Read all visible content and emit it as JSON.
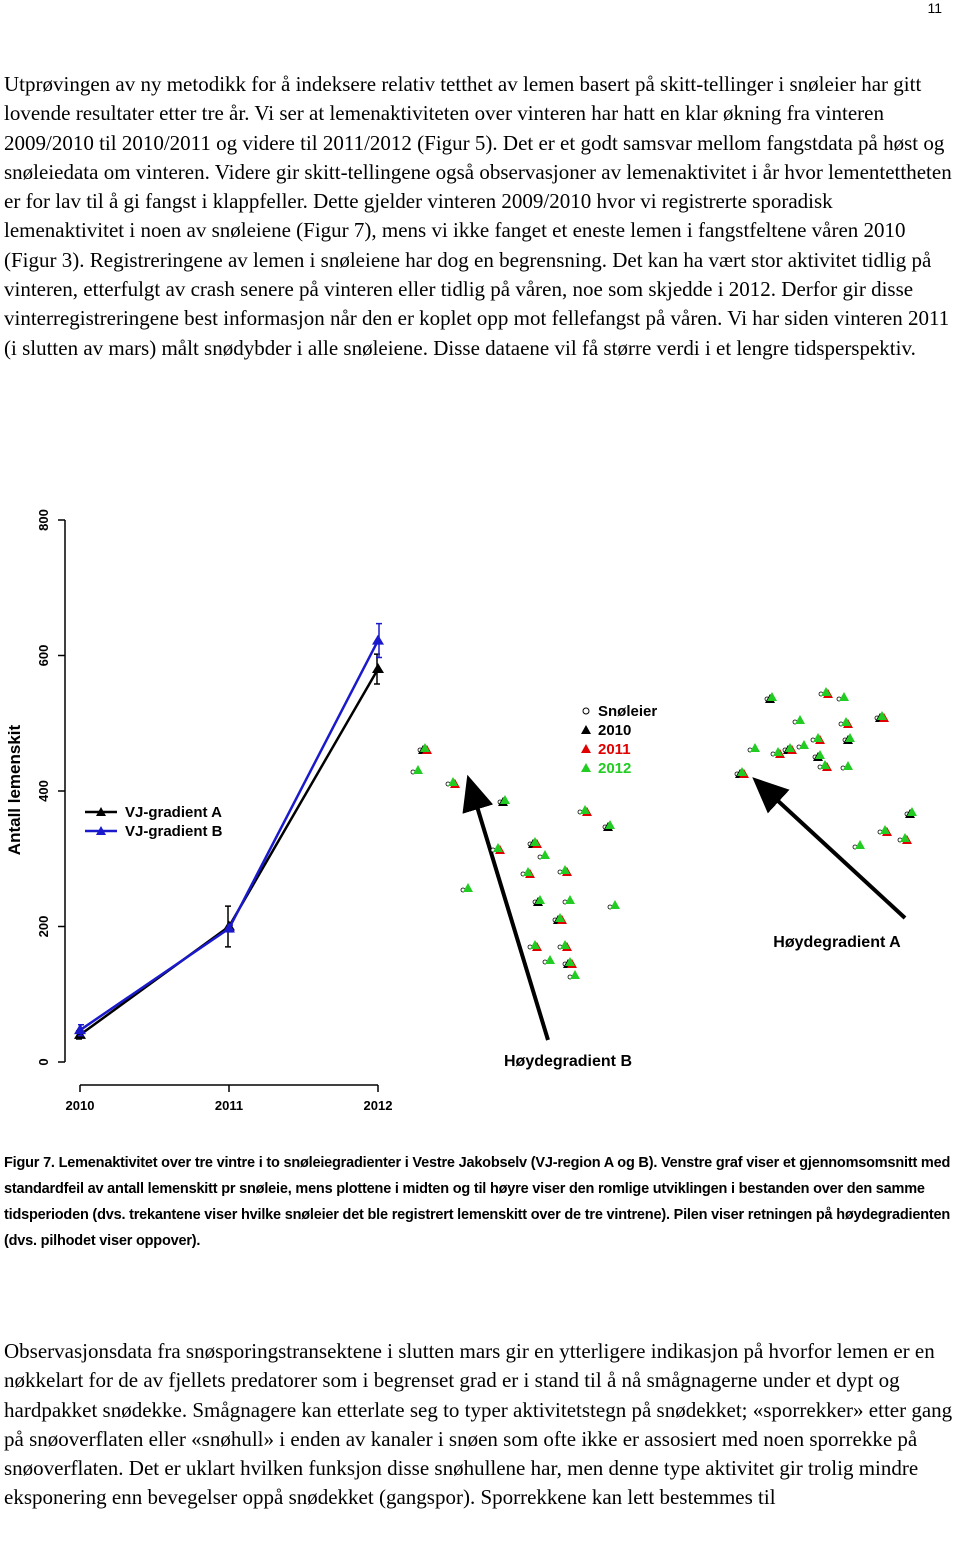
{
  "page_number": "11",
  "paragraphs": [
    "Utprøvingen av ny metodikk for å indeksere relativ tetthet av lemen basert på skitt-tellinger i snøleier har gitt lovende resultater etter tre år. Vi ser at lemenaktiviteten over vinteren har hatt en klar økning fra vinteren 2009/2010 til 2010/2011 og videre til 2011/2012 (Figur 5). Det er et godt samsvar mellom fangstdata på høst og snøleiedata om vinteren. Videre gir skitt-tellingene også observasjoner av lemenaktivitet i år hvor lementettheten er for lav til å gi fangst i klappfeller. Dette gjelder vinteren 2009/2010 hvor vi registrerte sporadisk lemenaktivitet i noen av snøleiene (Figur 7), mens vi ikke fanget et eneste lemen i fangstfeltene våren 2010 (Figur 3). Registreringene av lemen i snøleiene har dog en begrensning. Det kan ha vært stor aktivitet tidlig på vinteren, etterfulgt av crash senere på vinteren eller tidlig på våren, noe som skjedde i 2012. Derfor gir disse vinterregistreringene best informasjon når den er koplet opp mot fellefangst på våren. Vi har siden vinteren 2011 (i slutten av mars) målt snødybder i alle snøleiene. Disse dataene vil få større verdi i et lengre tidsperspektiv.",
    "Observasjonsdata fra snøsporingstransektene i slutten mars gir en ytterligere indikasjon på hvorfor lemen er en nøkkelart for de av fjellets predatorer som i begrenset grad er i stand til å nå smågnagerne under et dypt og hardpakket snødekke. Smågnagere kan etterlate seg to typer aktivitetstegn på snødekket; «sporrekker» etter gang på snøoverflaten eller «snøhull» i enden av kanaler i snøen som ofte ikke er assosiert med noen sporrekke på snøoverflaten. Det er uklart hvilken funksjon disse snøhullene har, men denne type aktivitet gir trolig mindre eksponering enn bevegelser oppå snødekket (gangspor). Sporrekkene kan lett bestemmes til"
  ],
  "figure": {
    "chart": {
      "type": "line",
      "y_label": "Antall lemenskit",
      "categories": [
        "2010",
        "2011",
        "2012"
      ],
      "ylim": [
        0,
        800
      ],
      "yticks": [
        0,
        200,
        400,
        600,
        800
      ],
      "series": [
        {
          "name": "VJ-gradient A",
          "color": "#000000",
          "values": [
            40,
            200,
            580
          ],
          "errors": [
            6,
            30,
            22
          ]
        },
        {
          "name": "VJ-gradient B",
          "color": "#1a1acc",
          "values": [
            47,
            197,
            622
          ],
          "errors": [
            8,
            5,
            25
          ]
        }
      ]
    },
    "map": {
      "legend": [
        {
          "name": "Snøleier",
          "color": "#ffffff"
        },
        {
          "name": "2010",
          "color": "#000000"
        },
        {
          "name": "2011",
          "color": "#e00000"
        },
        {
          "name": "2012",
          "color": "#22cc22"
        }
      ],
      "gradient_labels": [
        "Høydegradient B",
        "Høydegradient A"
      ]
    },
    "caption": "Figur 7. Lemenaktivitet over tre vintre i to snøleiegradienter i Vestre Jakobselv (VJ-region A og B). Venstre graf viser et gjennomsomsnitt med standardfeil av antall lemenskitt pr snøleie, mens plottene i midten og til høyre viser den romlige utviklingen i bestanden over den samme tidsperioden (dvs. trekantene viser hvilke snøleier det ble registrert lemenskitt over de tre vintrene). Pilen viser retningen på høydegradienten (dvs. pilhodet viser oppover)."
  }
}
